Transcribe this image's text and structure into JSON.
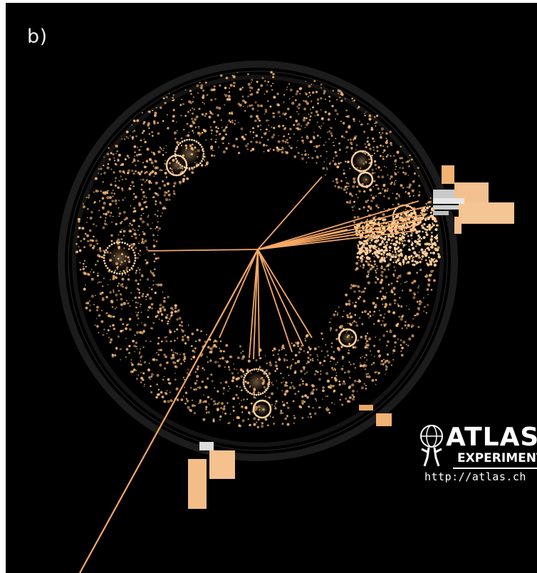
{
  "panel": {
    "label": "b)"
  },
  "logo": {
    "title": "ATLAS",
    "subtitle": "EXPERIMENT",
    "url": "http://atlas.ch",
    "icon": "atlas-figure-icon"
  },
  "colors": {
    "background": "#000000",
    "hits": "#f6b877",
    "tracks": "#f7a865",
    "calorimeter": "#f3c08f",
    "frame": "#ffffff"
  }
}
